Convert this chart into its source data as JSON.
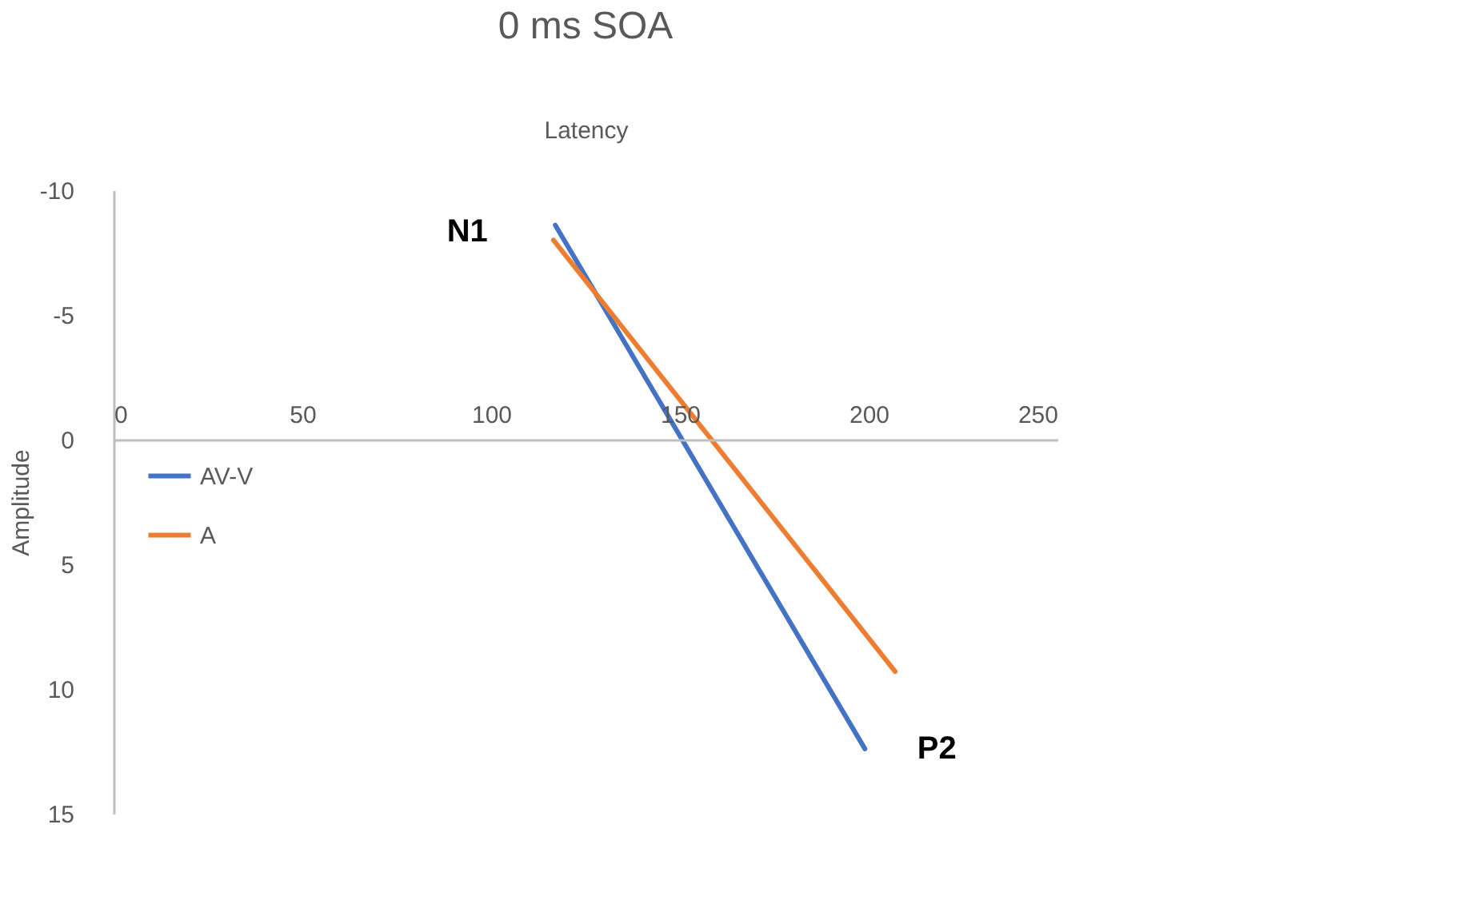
{
  "chart_data": {
    "type": "line",
    "title": "0 ms SOA",
    "xlabel": "Latency",
    "ylabel": "Amplitude",
    "xlim": [
      0,
      250
    ],
    "xticks": [
      0,
      50,
      100,
      150,
      200,
      250
    ],
    "ylim": [
      15,
      -10
    ],
    "yticks": [
      -10,
      -5,
      0,
      5,
      10,
      15
    ],
    "grid": false,
    "legend": "left",
    "marker": "none",
    "line_style": "solid",
    "series": [
      {
        "name": "AV-V",
        "color": "#4472c4",
        "x": [
          117,
          199
        ],
        "values": [
          -8.6,
          12.4
        ]
      },
      {
        "name": "A",
        "color": "#ed7d31",
        "x": [
          116.5,
          207
        ],
        "values": [
          -8.0,
          9.3
        ]
      }
    ],
    "annotations": [
      {
        "text": "N1",
        "x": 117,
        "y": -8.6
      },
      {
        "text": "P2",
        "x": 199,
        "y": 12.4
      }
    ]
  }
}
